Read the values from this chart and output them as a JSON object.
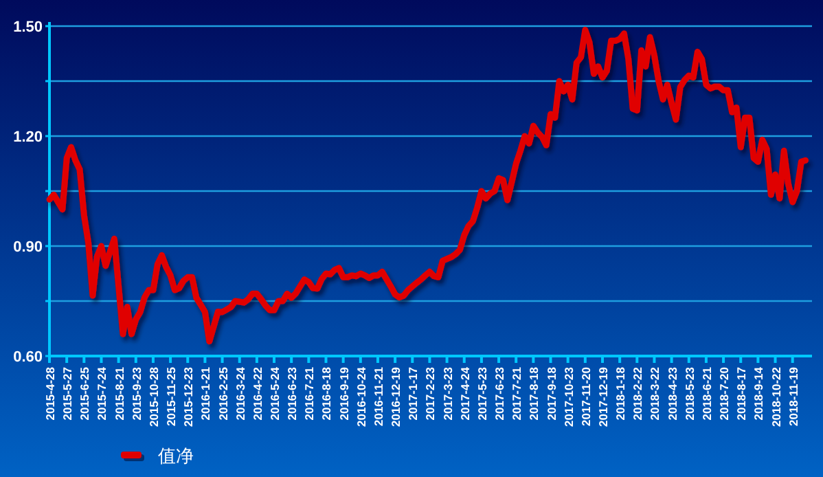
{
  "chart_data": {
    "type": "line",
    "categories": [
      "2015-4-28",
      null,
      null,
      null,
      "2015-5-27",
      null,
      null,
      null,
      "2015-6-25",
      null,
      null,
      null,
      "2015-7-24",
      null,
      null,
      null,
      "2015-8-21",
      null,
      null,
      null,
      "2015-9-23",
      null,
      null,
      null,
      "2015-10-28",
      null,
      null,
      null,
      "2015-11-25",
      null,
      null,
      null,
      "2015-12-23",
      null,
      null,
      null,
      "2016-1-21",
      null,
      null,
      null,
      "2016-2-25",
      null,
      null,
      null,
      "2016-3-24",
      null,
      null,
      null,
      "2016-4-22",
      null,
      null,
      null,
      "2016-5-24",
      null,
      null,
      null,
      "2016-6-23",
      null,
      null,
      null,
      "2016-7-21",
      null,
      null,
      null,
      "2016-8-18",
      null,
      null,
      null,
      "2016-9-19",
      null,
      null,
      null,
      "2016-10-24",
      null,
      null,
      null,
      "2016-11-21",
      null,
      null,
      null,
      "2016-12-19",
      null,
      null,
      null,
      "2017-1-17",
      null,
      null,
      null,
      "2017-2-23",
      null,
      null,
      null,
      "2017-3-23",
      null,
      null,
      null,
      "2017-4-24",
      null,
      null,
      null,
      "2017-5-23",
      null,
      null,
      null,
      "2017-6-23",
      null,
      null,
      null,
      "2017-7-21",
      null,
      null,
      null,
      "2017-8-18",
      null,
      null,
      null,
      "2017-9-18",
      null,
      null,
      null,
      "2017-10-23",
      null,
      null,
      null,
      "2017-11-20",
      null,
      null,
      null,
      "2017-12-19",
      null,
      null,
      null,
      "2018-1-18",
      null,
      null,
      null,
      "2018-2-22",
      null,
      null,
      null,
      "2018-3-22",
      null,
      null,
      null,
      "2018-4-23",
      null,
      null,
      null,
      "2018-5-23",
      null,
      null,
      null,
      "2018-6-21",
      null,
      null,
      null,
      "2018-7-20",
      null,
      null,
      null,
      "2018-8-17",
      null,
      null,
      null,
      "2018-9-14",
      null,
      null,
      null,
      "2018-10-22",
      null,
      null,
      null,
      "2018-11-19",
      null,
      null,
      null
    ],
    "series": [
      {
        "name": "值净",
        "color": "#e00000",
        "values": [
          1.027,
          1.04,
          1.02,
          1.0,
          1.14,
          1.17,
          1.134,
          1.109,
          0.984,
          0.909,
          0.765,
          0.871,
          0.9,
          0.846,
          0.884,
          0.92,
          0.79,
          0.66,
          0.734,
          0.66,
          0.7,
          0.72,
          0.76,
          0.78,
          0.78,
          0.85,
          0.875,
          0.843,
          0.82,
          0.78,
          0.785,
          0.805,
          0.815,
          0.815,
          0.759,
          0.74,
          0.72,
          0.64,
          0.68,
          0.721,
          0.72,
          0.727,
          0.734,
          0.75,
          0.748,
          0.746,
          0.755,
          0.77,
          0.77,
          0.755,
          0.738,
          0.725,
          0.725,
          0.75,
          0.75,
          0.77,
          0.759,
          0.771,
          0.79,
          0.809,
          0.802,
          0.785,
          0.784,
          0.81,
          0.825,
          0.823,
          0.835,
          0.84,
          0.815,
          0.815,
          0.82,
          0.818,
          0.825,
          0.82,
          0.813,
          0.82,
          0.82,
          0.83,
          0.81,
          0.79,
          0.768,
          0.76,
          0.765,
          0.78,
          0.79,
          0.8,
          0.809,
          0.82,
          0.83,
          0.818,
          0.815,
          0.86,
          0.865,
          0.87,
          0.878,
          0.89,
          0.93,
          0.955,
          0.968,
          1.005,
          1.05,
          1.03,
          1.043,
          1.05,
          1.085,
          1.08,
          1.025,
          1.075,
          1.125,
          1.16,
          1.2,
          1.18,
          1.228,
          1.21,
          1.198,
          1.175,
          1.26,
          1.25,
          1.35,
          1.322,
          1.34,
          1.3,
          1.4,
          1.415,
          1.49,
          1.455,
          1.37,
          1.39,
          1.36,
          1.378,
          1.46,
          1.46,
          1.465,
          1.48,
          1.41,
          1.275,
          1.27,
          1.434,
          1.39,
          1.47,
          1.42,
          1.35,
          1.3,
          1.34,
          1.29,
          1.245,
          1.334,
          1.353,
          1.365,
          1.36,
          1.43,
          1.41,
          1.34,
          1.33,
          1.335,
          1.335,
          1.325,
          1.325,
          1.265,
          1.278,
          1.17,
          1.25,
          1.25,
          1.14,
          1.13,
          1.19,
          1.165,
          1.04,
          1.095,
          1.03,
          1.16,
          1.07,
          1.02,
          1.05,
          1.13,
          1.134
        ]
      }
    ],
    "ylim": [
      0.6,
      1.5
    ],
    "yticks": [
      {
        "value": 0.75,
        "label": null
      },
      {
        "value": 0.9,
        "label": "0.90"
      },
      {
        "value": 1.05,
        "label": null
      },
      {
        "value": 1.2,
        "label": "1.20"
      },
      {
        "value": 1.35,
        "label": null
      },
      {
        "value": 1.5,
        "label": "1.50"
      },
      {
        "value": 0.6,
        "label": "0.60"
      }
    ],
    "grid": "y",
    "legend": "bottom left",
    "line_style": "solid"
  }
}
